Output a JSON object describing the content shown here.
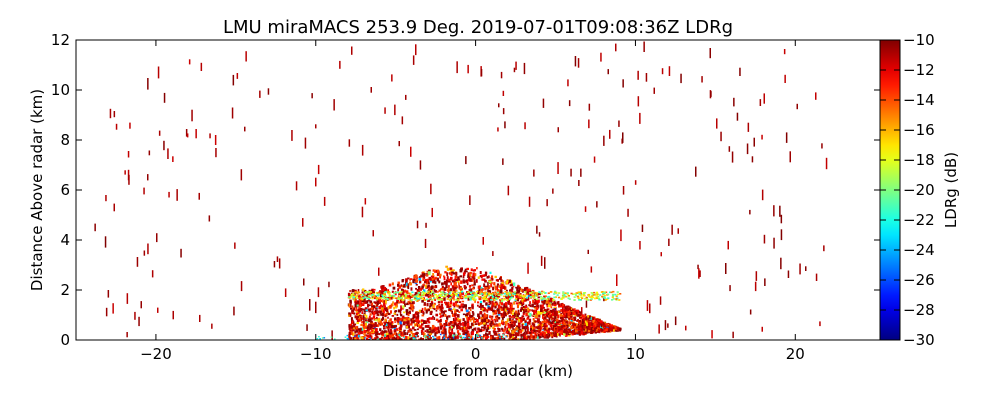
{
  "chart_data": {
    "type": "heatmap",
    "title": "LMU miraMACS 253.9 Deg. 2019-07-01T09:08:36Z  LDRg",
    "xlabel": "Distance from radar (km)",
    "ylabel": "Distance Above radar  (km)",
    "xlim": [
      -25,
      25.3
    ],
    "ylim": [
      0,
      12
    ],
    "x_ticks": [
      -20,
      -10,
      0,
      10,
      20
    ],
    "x_tick_labels": [
      "−20",
      "−10",
      "0",
      "10",
      "20"
    ],
    "y_ticks": [
      0,
      2,
      4,
      6,
      8,
      10,
      12
    ],
    "y_tick_labels": [
      "0",
      "2",
      "4",
      "6",
      "8",
      "10",
      "12"
    ],
    "grid": false,
    "colorbar": {
      "label": "LDRg (dB)",
      "range": [
        -30,
        -10
      ],
      "ticks": [
        -10,
        -12,
        -14,
        -16,
        -18,
        -20,
        -22,
        -24,
        -26,
        -28,
        -30
      ],
      "tick_labels": [
        "−10",
        "−12",
        "−14",
        "−16",
        "−18",
        "−20",
        "−22",
        "−24",
        "−26",
        "−28",
        "−30"
      ],
      "colormap": "jet",
      "colors": [
        "#00007f",
        "#0000ff",
        "#007fff",
        "#00ffff",
        "#7fff7f",
        "#ffff00",
        "#ff7f00",
        "#ff0000",
        "#7f0000"
      ]
    },
    "dense_region": {
      "x_range": [
        -8,
        9
      ],
      "y_range": [
        0,
        3
      ],
      "dominant_ldr": -10,
      "notes": "dense echo near radar, mostly -10 to -14 dB"
    },
    "bright_band": {
      "x_range": [
        -8,
        9
      ],
      "y_approx": 1.8,
      "ldr_range": [
        -14,
        -22
      ]
    },
    "sparse_clutter": {
      "x_range": [
        -24,
        22
      ],
      "y_range": [
        0,
        12
      ],
      "ldr_approx": -10
    }
  }
}
